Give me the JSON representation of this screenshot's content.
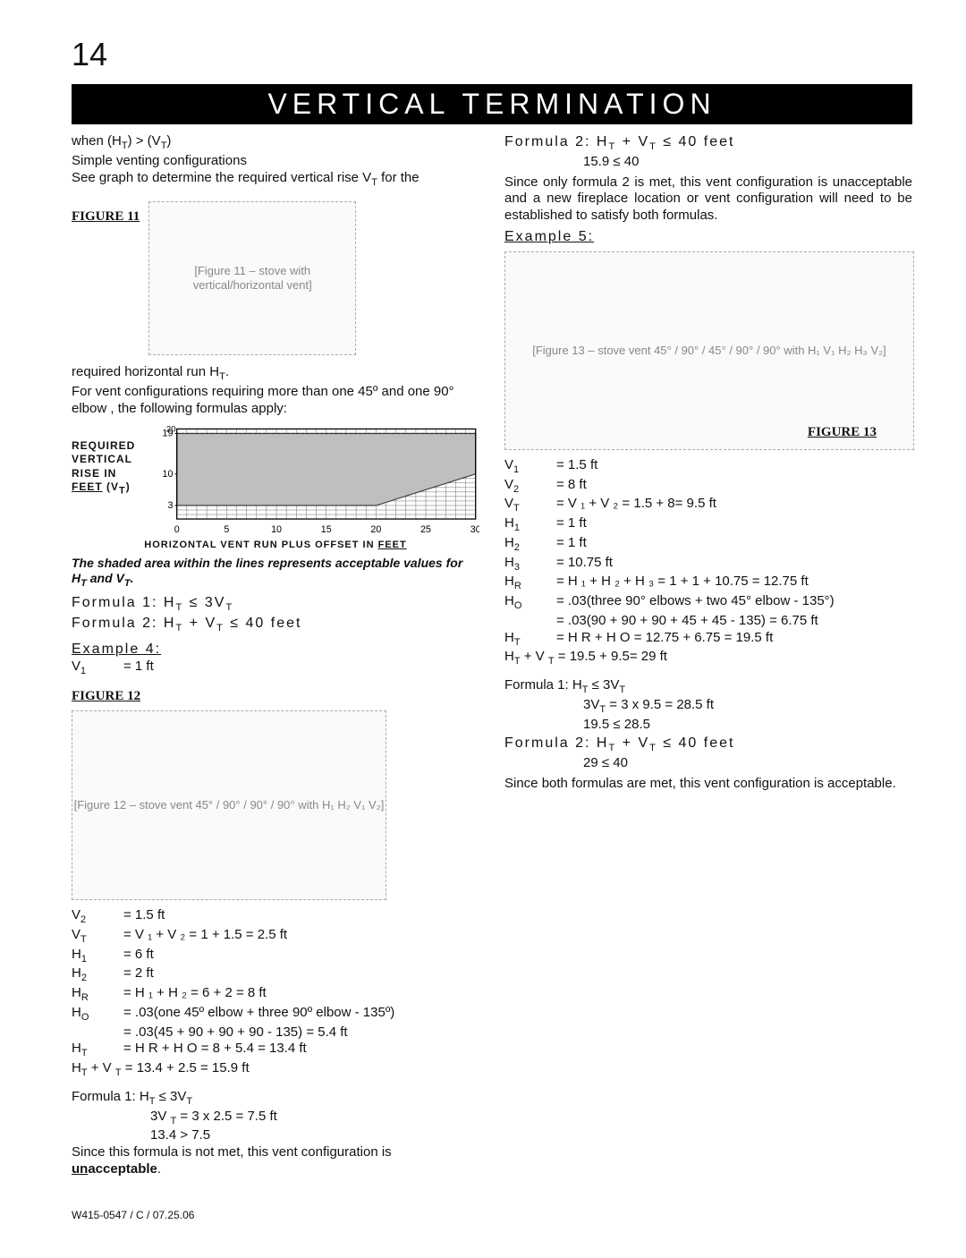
{
  "page_number": "14",
  "title_bar": "VERTICAL TERMINATION",
  "footnote": "W415-0547 / C / 07.25.06",
  "graph": {
    "type": "area",
    "xlim": [
      0,
      30
    ],
    "ylim": [
      0,
      20
    ],
    "xtick_step": 5,
    "minor_step": 1,
    "ytick_labels": [
      "3",
      "10",
      "19"
    ],
    "ytick_values": [
      3,
      10,
      19
    ],
    "xtick_labels": [
      "0",
      "5",
      "10",
      "15",
      "20",
      "25",
      "30"
    ],
    "area_points_upper": [
      [
        0,
        19
      ],
      [
        30,
        19
      ]
    ],
    "area_points_lower": [
      [
        0,
        3
      ],
      [
        20,
        3
      ],
      [
        30,
        10
      ]
    ],
    "grid_color": "#555",
    "area_fill": "#bfbfbf",
    "background": "#ffffff",
    "axis_font_size": 10,
    "left_label_lines": [
      "REQUIRED",
      "VERTICAL",
      "RISE  IN"
    ],
    "left_label_last_underline": "FEET",
    "left_label_suffix": " (V",
    "left_label_sub": "T",
    "left_label_close": ")",
    "bottom_label_prefix": "HORIZONTAL VENT RUN PLUS OFFSET IN ",
    "bottom_label_underline": "FEET",
    "shaded_note": "The shaded area within the lines represents acceptable values for H",
    "shaded_note_sub1": "T",
    "shaded_note_mid": " and V",
    "shaded_note_sub2": "T",
    "shaded_note_end": "."
  },
  "left_col": {
    "intro1_prefix": "when (H",
    "intro1_sub1": "T",
    "intro1_mid": ") > (V",
    "intro1_sub2": "T",
    "intro1_end": ")",
    "intro2": "Simple venting configurations",
    "intro3_prefix": "See graph to determine the required vertical rise V",
    "intro3_sub": "T",
    "intro3_end": " for the",
    "fig11_label": "FIGURE  11",
    "fig11_placeholder": "[Figure 11 – stove with vertical/horizontal vent]",
    "req_line_prefix": "required horizontal run H",
    "req_line_sub": "T",
    "req_line_end": ".",
    "req2": "For vent configurations requiring more than one 45º and one 90° elbow , the following formulas apply:",
    "formula1_prefix": "Formula 1:  H",
    "formula1_sub1": "T",
    "formula1_mid": " ≤ 3V",
    "formula1_sub2": "T",
    "formula2_prefix": "Formula 2: H",
    "formula2_sub1": "T",
    "formula2_mid": " + V",
    "formula2_sub2": "T",
    "formula2_end": " ≤ 40 feet",
    "example4_head": "Example  4:",
    "example4_rows": [
      [
        "V",
        "1",
        "= 1 ft"
      ]
    ],
    "fig12_label": "FIGURE 12",
    "fig12_placeholder": "[Figure 12 – stove vent 45° / 90° / 90° / 90°  with H₁ H₂ V₁ V₂]",
    "fig12_annot": [
      "45°",
      "90°",
      "90°",
      "90°",
      "H",
      "1",
      "H",
      "2",
      "V",
      "1",
      "V",
      "2"
    ],
    "calc4": [
      [
        "V",
        "2",
        "= 1.5 ft"
      ],
      [
        "V",
        "T",
        "= V ₁ + V ₂ = 1 + 1.5 = 2.5 ft"
      ],
      [
        "H",
        "1",
        "= 6 ft"
      ],
      [
        "H",
        "2",
        "= 2 ft"
      ],
      [
        "H",
        "R",
        "= H ₁ + H ₂ = 6 + 2 = 8 ft"
      ],
      [
        "H",
        "O",
        "= .03(one 45º elbow + three 90º elbow - 135º)"
      ],
      [
        "",
        "",
        "= .03(45 + 90 + 90 + 90 - 135) = 5.4 ft"
      ],
      [
        "H",
        "T",
        "= H R + H O = 8 + 5.4 = 13.4 ft"
      ]
    ],
    "sum4_prefix": "H",
    "sum4_sub1": "T",
    "sum4_mid": " + V ",
    "sum4_sub2": "T",
    "sum4_end": " = 13.4 + 2.5 = 15.9 ft",
    "f1_head_prefix": "Formula 1:    H",
    "f1_head_sub1": "T",
    "f1_head_mid": " ≤ 3V",
    "f1_head_sub2": "T",
    "f1_line2_prefix": "3V ",
    "f1_line2_sub": "T",
    "f1_line2_end": " = 3 x 2.5 = 7.5 ft",
    "f1_line3": "13.4 > 7.5",
    "concl4a": "Since this formula is not met, this vent configuration is ",
    "concl4b_underline": "un",
    "concl4b_bold": "acceptable",
    "concl4c": "."
  },
  "right_col": {
    "top_f2_prefix": "Formula 2:    H",
    "top_f2_sub1": "T",
    "top_f2_mid": " + V",
    "top_f2_sub2": "T",
    "top_f2_end": " ≤  40  feet",
    "top_f2_line2": "15.9 ≤ 40",
    "top_para": "Since only formula 2 is met, this vent configuration is unacceptable and a new fireplace location or vent configuration will need to be established to satisfy both formulas.",
    "example5_head": "Example 5:",
    "fig13_placeholder": "[Figure 13 – stove vent 45° / 90° / 45° / 90° / 90° with H₁ V₁ H₂ H₃ V₂]",
    "fig13_label": "FIGURE 13",
    "fig13_annot": [
      "90°",
      "45°",
      "45°",
      "90°",
      "90°",
      "H",
      "1",
      "H",
      "2",
      "H",
      "3",
      "V",
      "1",
      "V",
      "2"
    ],
    "calc5": [
      [
        "V",
        "1",
        "= 1.5 ft"
      ],
      [
        "V",
        "2",
        "= 8 ft"
      ],
      [
        "V",
        "T",
        "= V ₁ + V ₂ = 1.5 + 8= 9.5 ft"
      ],
      [
        "H",
        "1",
        "= 1 ft"
      ],
      [
        "H",
        "2",
        "= 1 ft"
      ],
      [
        "H",
        "3",
        "= 10.75 ft"
      ],
      [
        "H",
        "R",
        "= H ₁ + H ₂ + H ₃ = 1 + 1 + 10.75 = 12.75 ft"
      ],
      [
        "H",
        "O",
        "= .03(three 90° elbows + two 45° elbow - 135°)"
      ],
      [
        "",
        "",
        "= .03(90 + 90 + 90 + 45 + 45 - 135) = 6.75 ft"
      ],
      [
        "H",
        "T",
        "= H R + H O = 12.75 + 6.75 = 19.5 ft"
      ]
    ],
    "sum5_prefix": "H",
    "sum5_sub1": "T",
    "sum5_mid": " + V ",
    "sum5_sub2": "T",
    "sum5_end": " = 19.5 + 9.5= 29 ft",
    "f1_head_prefix": "Formula 1:    H",
    "f1_head_sub1": "T",
    "f1_head_mid": " ≤ 3V",
    "f1_head_sub2": "T",
    "f1_line2_prefix": "3V",
    "f1_line2_sub": "T",
    "f1_line2_end": " = 3 x 9.5 = 28.5 ft",
    "f1_line3": "19.5 ≤ 28.5",
    "f2_head_prefix": "Formula 2:    H",
    "f2_head_sub1": "T",
    "f2_head_mid": " + V",
    "f2_head_sub2": "T",
    "f2_head_end": " ≤ 40  feet",
    "f2_line2": "29 ≤ 40",
    "concl5": "Since both formulas are met, this vent configuration is acceptable."
  }
}
